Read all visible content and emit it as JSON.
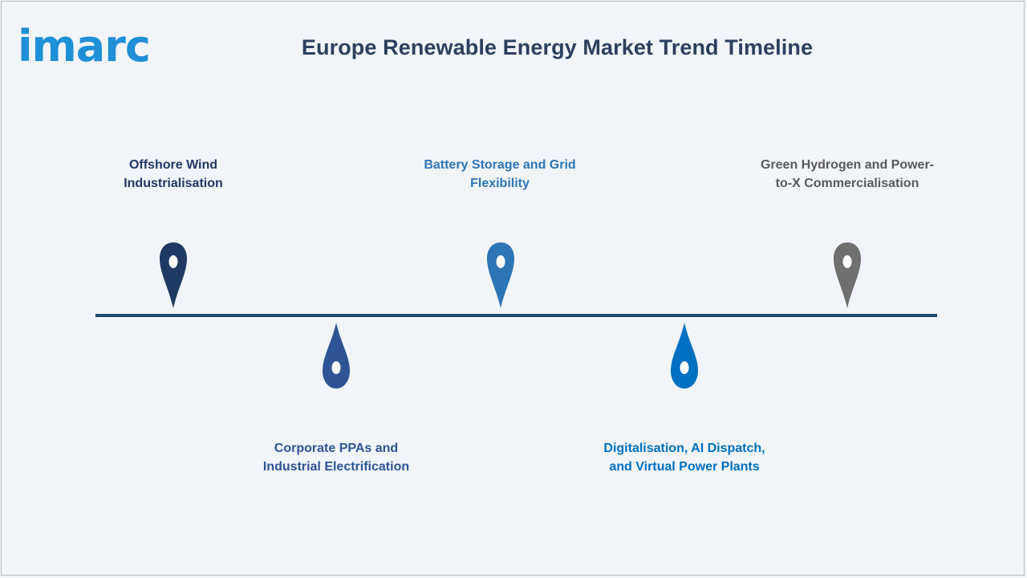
{
  "brand": {
    "logo_text": "imarc",
    "logo_color": "#1f8fd6"
  },
  "title": "Europe Renewable Energy Market Trend Timeline",
  "timeline": {
    "line_color": "#21476b",
    "milestones": [
      {
        "label_line1": "Offshore Wind",
        "label_line2": "Industrialisation",
        "color": "#1f3864",
        "position": "above"
      },
      {
        "label_line1": "Corporate PPAs and",
        "label_line2": "Industrial Electrification",
        "color": "#2e5496",
        "position": "below"
      },
      {
        "label_line1": "Battery Storage and Grid",
        "label_line2": "Flexibility",
        "color": "#2e75b6",
        "position": "above"
      },
      {
        "label_line1": "Digitalisation, AI Dispatch,",
        "label_line2": "and Virtual Power Plants",
        "color": "#0070c0",
        "position": "below"
      },
      {
        "label_line1": "Green Hydrogen and Power-",
        "label_line2": "to-X Commercialisation",
        "color": "#6f6f6f",
        "position": "above"
      }
    ]
  }
}
